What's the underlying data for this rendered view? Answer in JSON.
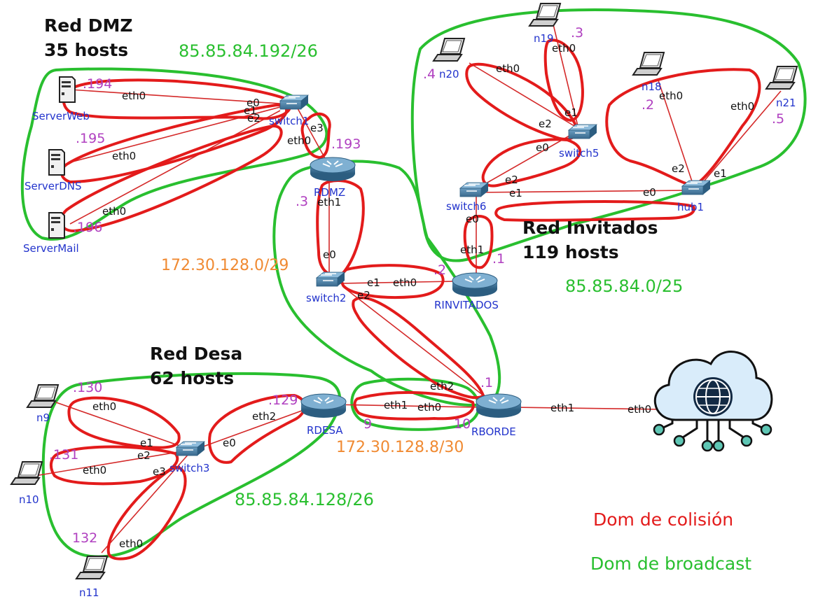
{
  "colors": {
    "collision": "#e31b1b",
    "broadcast": "#29bf2f",
    "orange_net": "#f08a32",
    "ip_label": "#b040c0",
    "device_label": "#2233cc",
    "cloud": "#d9ecfa"
  },
  "titles": {
    "dmz": [
      "Red DMZ",
      "35 hosts"
    ],
    "invitados": [
      "Red Invitados",
      "119 hosts"
    ],
    "desa": [
      "Red Desa",
      "62 hosts"
    ]
  },
  "networks": {
    "dmz": "85.85.84.192/26",
    "invitados": "85.85.84.0/25",
    "desa": "85.85.84.128/26",
    "core29": "172.30.128.0/29",
    "core30": "172.30.128.8/30"
  },
  "legend": {
    "collision": "Dom de colisión",
    "broadcast": "Dom de broadcast"
  },
  "devices": {
    "serverweb": "ServerWeb",
    "serverdns": "ServerDNS",
    "servermail": "ServerMail",
    "switch1": "switch1",
    "rdmz": "RDMZ",
    "switch2": "switch2",
    "rinvitados": "RINVITADOS",
    "rborde": "RBORDE",
    "rdesa": "RDESA",
    "switch3": "switch3",
    "switch5": "switch5",
    "switch6": "switch6",
    "hub1": "hub1",
    "n9": "n9",
    "n10": "n10",
    "n11": "n11",
    "n18": "n18",
    "n19": "n19",
    "n20": "n20",
    "n21": "n21"
  },
  "ips": {
    "web": ".194",
    "dns": ".195",
    "mail": ".196",
    "rdmz_out": ".193",
    "rdmz_in": ".3",
    "rinv_in": ".2",
    "rinv_out": ".1",
    "rborde_in": ".1",
    "rborde_9": "9",
    "rborde_10": "10",
    "rdesa": ".129",
    "n9": ".130",
    "n10": ".131",
    "n11": "132",
    "n19": ".3",
    "n20": ".4",
    "n18": ".2",
    "n21": ".5"
  },
  "ifaces": {
    "eth0": "eth0",
    "eth1": "eth1",
    "eth2": "eth2",
    "e0": "e0",
    "e1": "e1",
    "e2": "e2",
    "e3": "e3"
  }
}
